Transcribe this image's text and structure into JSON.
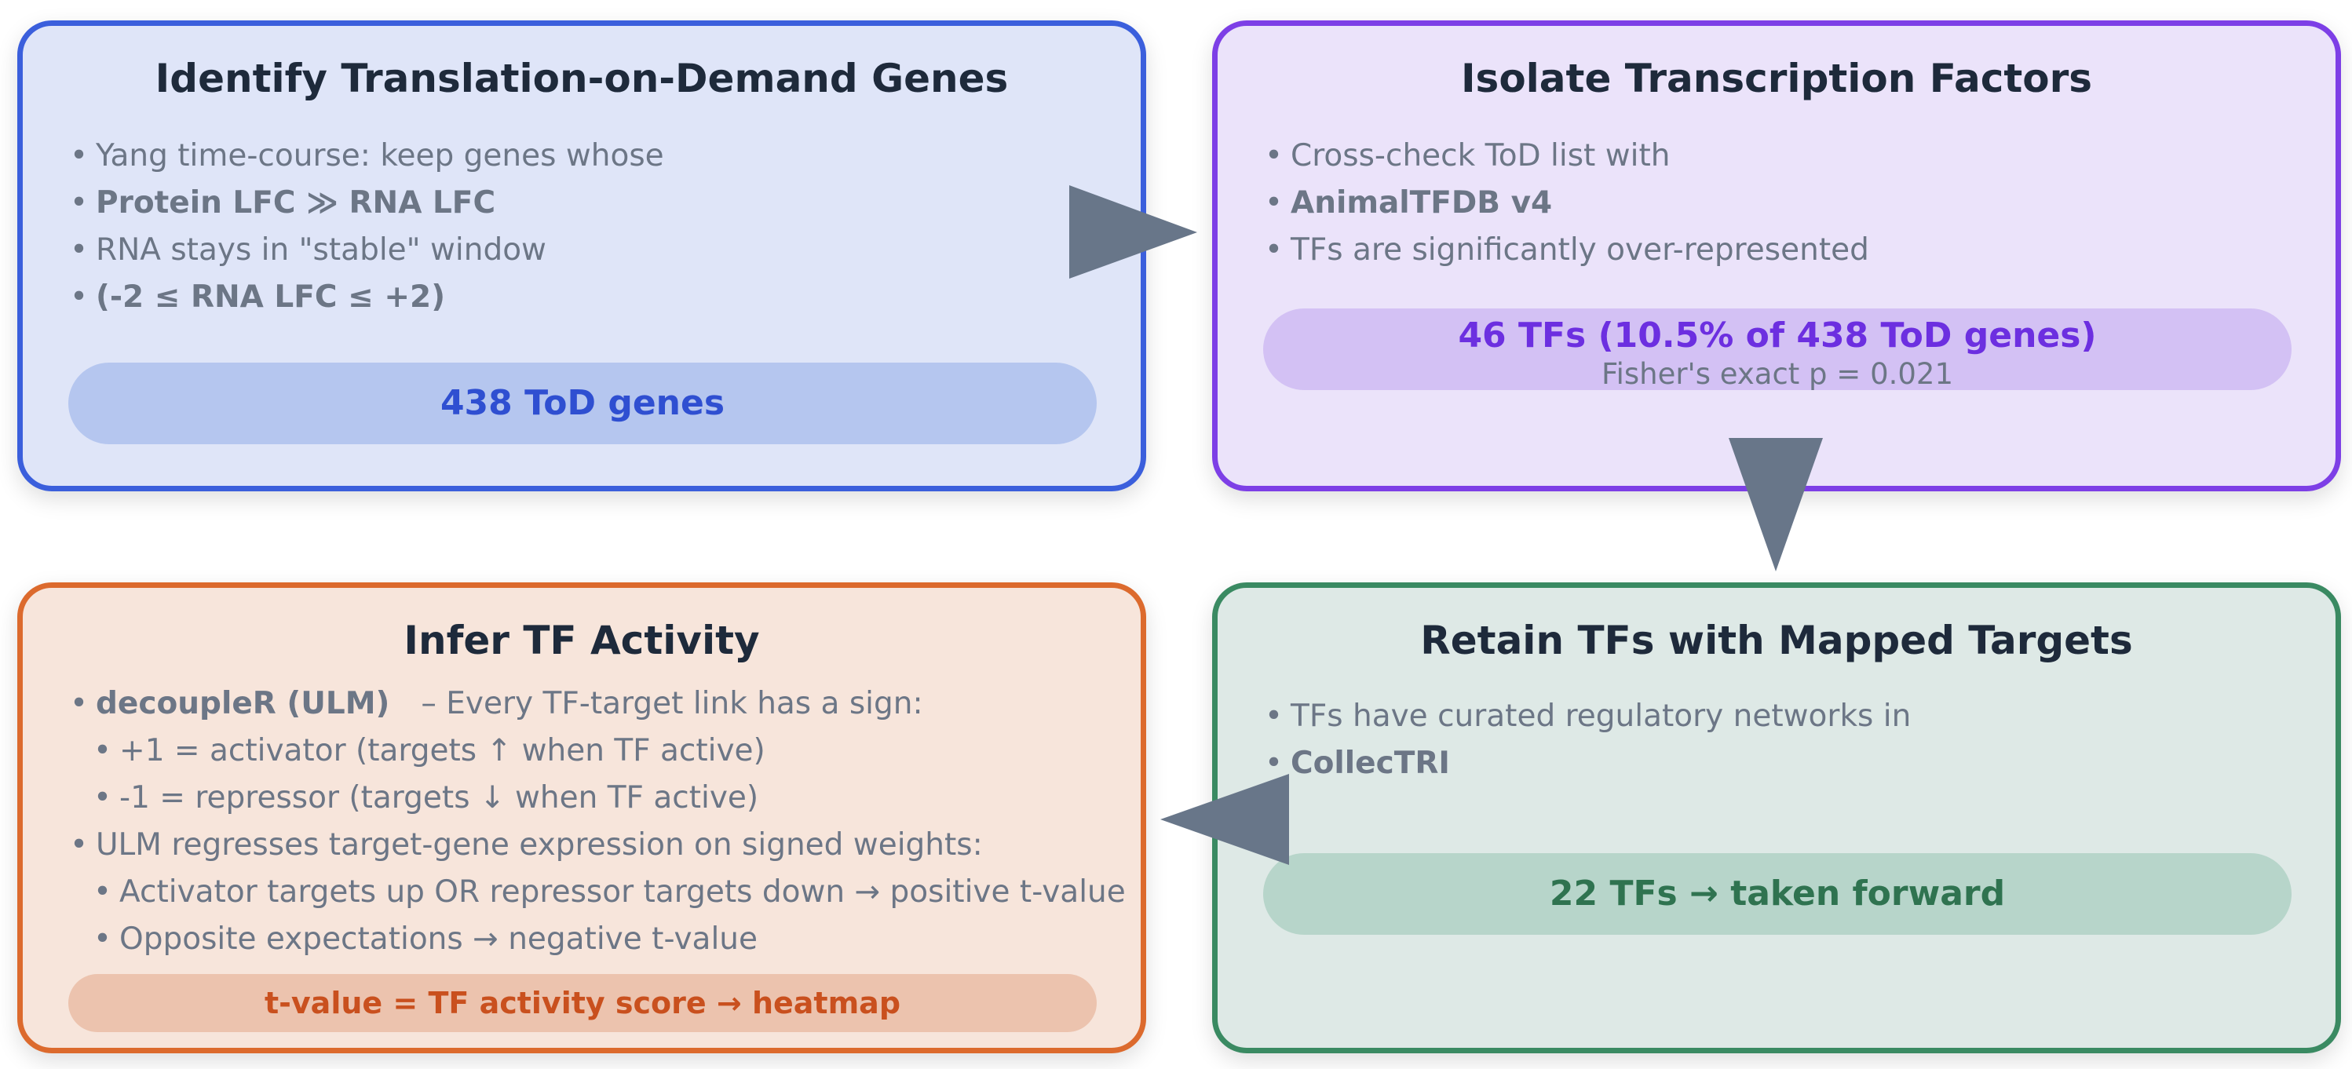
{
  "cards": {
    "identify": {
      "title": "Identify Translation-on-Demand Genes",
      "bullets": [
        {
          "text": "Yang time-course: keep genes whose"
        },
        {
          "text": "Protein LFC ≫ RNA LFC"
        },
        {
          "text": "RNA stays in \"stable\" window"
        },
        {
          "text": "(-2 ≤ RNA LFC ≤ +2)"
        }
      ],
      "result": "438 ToD genes"
    },
    "isolate": {
      "title": "Isolate Transcription Factors",
      "bullets": [
        {
          "text": "Cross-check ToD list with"
        },
        {
          "text": "AnimalTFDB v4"
        },
        {
          "text": "TFs are significantly over-represented"
        }
      ],
      "result": "46 TFs (10.5% of 438 ToD genes)",
      "result_sub": "Fisher's exact p = 0.021"
    },
    "retain": {
      "title": "Retain TFs with Mapped Targets",
      "bullets": [
        {
          "text": "TFs have curated regulatory networks in"
        },
        {
          "text": "CollecTRI"
        }
      ],
      "result": "22 TFs → taken forward"
    },
    "infer": {
      "title": "Infer TF Activity",
      "bullets": [
        {
          "bold": "decoupleR (ULM)",
          "text": "– Every TF-target link has a sign:"
        },
        {
          "text": "+1 = activator (targets ↑ when TF active)"
        },
        {
          "text": "-1 = repressor (targets ↓ when TF active)"
        },
        {
          "text": "ULM regresses target-gene expression on signed weights:"
        },
        {
          "text": "Activator targets up OR repressor targets down → positive t-value"
        },
        {
          "text": "Opposite expectations → negative t-value"
        }
      ],
      "result": "t-value = TF activity score → heatmap"
    }
  },
  "colors": {
    "arrow": "#687689",
    "blue_accent": "#2f4fd1",
    "purple_accent": "#6c2fe0",
    "green_accent": "#2f7350",
    "orange_accent": "#c9501e"
  },
  "bullet_glyph": "•"
}
